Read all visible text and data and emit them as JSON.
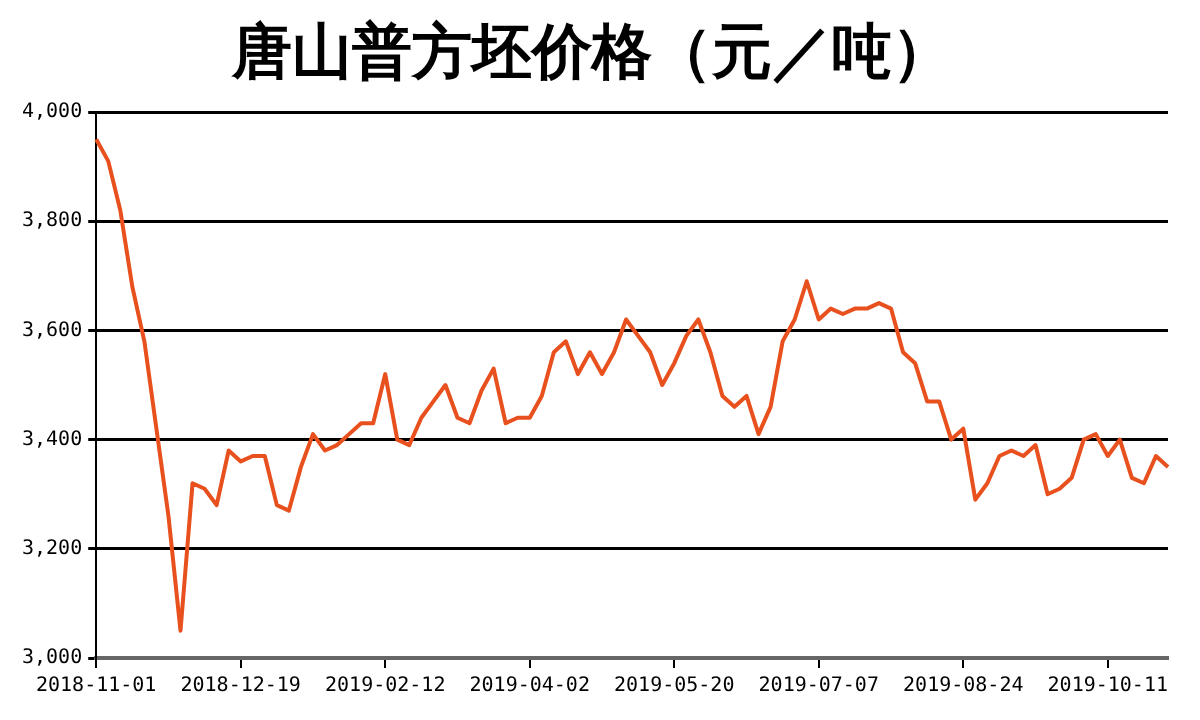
{
  "chart_data": {
    "type": "line",
    "title": "唐山普方坯价格（元／吨）",
    "categories": [
      "2018-11-01",
      null,
      null,
      null,
      null,
      null,
      null,
      null,
      null,
      null,
      null,
      null,
      "2018-12-19",
      null,
      null,
      null,
      null,
      null,
      null,
      null,
      null,
      null,
      null,
      null,
      "2019-02-12",
      null,
      null,
      null,
      null,
      null,
      null,
      null,
      null,
      null,
      null,
      null,
      "2019-04-02",
      null,
      null,
      null,
      null,
      null,
      null,
      null,
      null,
      null,
      null,
      null,
      "2019-05-20",
      null,
      null,
      null,
      null,
      null,
      null,
      null,
      null,
      null,
      null,
      null,
      "2019-07-07",
      null,
      null,
      null,
      null,
      null,
      null,
      null,
      null,
      null,
      null,
      null,
      "2019-08-24",
      null,
      null,
      null,
      null,
      null,
      null,
      null,
      null,
      null,
      null,
      null,
      "2019-10-11",
      null,
      null,
      null,
      null,
      null
    ],
    "series": [
      {
        "color": "#e8501e",
        "values": [
          3950,
          3910,
          3820,
          3680,
          3580,
          3420,
          3260,
          3050,
          3320,
          3310,
          3280,
          3380,
          3360,
          3370,
          3370,
          3280,
          3270,
          3350,
          3410,
          3380,
          3390,
          3410,
          3430,
          3430,
          3520,
          3400,
          3390,
          3440,
          3470,
          3500,
          3440,
          3430,
          3490,
          3530,
          3430,
          3440,
          3440,
          3480,
          3560,
          3580,
          3520,
          3560,
          3520,
          3560,
          3620,
          3590,
          3560,
          3500,
          3540,
          3590,
          3620,
          3560,
          3480,
          3460,
          3480,
          3410,
          3460,
          3580,
          3620,
          3690,
          3620,
          3640,
          3630,
          3640,
          3640,
          3650,
          3640,
          3560,
          3540,
          3470,
          3470,
          3400,
          3420,
          3290,
          3320,
          3370,
          3380,
          3370,
          3390,
          3300,
          3310,
          3330,
          3400,
          3410,
          3370,
          3400,
          3330,
          3320,
          3370,
          3350
        ]
      }
    ],
    "ylim": [
      3000,
      4000
    ],
    "yticks": [
      {
        "value": 3000,
        "label": "3,000"
      },
      {
        "value": 3200,
        "label": "3,200"
      },
      {
        "value": 3400,
        "label": "3,400"
      },
      {
        "value": 3600,
        "label": "3,600"
      },
      {
        "value": 3800,
        "label": "3,800"
      },
      {
        "value": 4000,
        "label": "4,000"
      }
    ],
    "grid": "y",
    "legend": false,
    "marker": "none",
    "line_style": "solid"
  }
}
